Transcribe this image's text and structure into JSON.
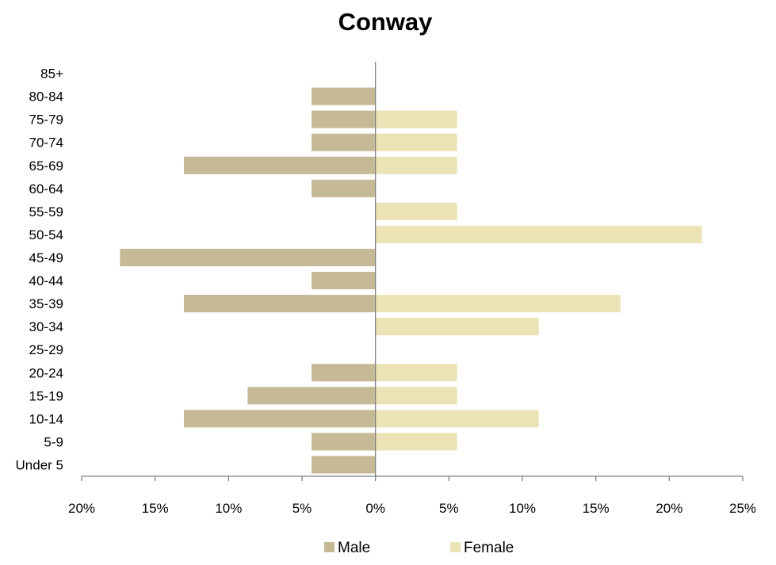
{
  "chart_data": {
    "type": "bar",
    "orientation": "horizontal",
    "title": "Conway",
    "categories": [
      "Under 5",
      "5-9",
      "10-14",
      "15-19",
      "20-24",
      "25-29",
      "30-34",
      "35-39",
      "40-44",
      "45-49",
      "50-54",
      "55-59",
      "60-64",
      "65-69",
      "70-74",
      "75-79",
      "80-84",
      "85+"
    ],
    "series": [
      {
        "name": "Male",
        "color": "#c5b996",
        "values": [
          4.35,
          4.35,
          13.04,
          8.7,
          4.35,
          0,
          0,
          13.04,
          4.35,
          17.39,
          0,
          0,
          4.35,
          13.04,
          4.35,
          4.35,
          4.35,
          0
        ]
      },
      {
        "name": "Female",
        "color": "#ebe3b5",
        "values": [
          0,
          5.56,
          11.11,
          5.56,
          5.56,
          0,
          11.11,
          16.67,
          0,
          0,
          22.22,
          5.56,
          0,
          5.56,
          5.56,
          5.56,
          0,
          0
        ]
      }
    ],
    "xlim": [
      -20,
      25
    ],
    "xticks": [
      -20,
      -15,
      -10,
      -5,
      0,
      5,
      10,
      15,
      20,
      25
    ],
    "xtick_labels": [
      "20%",
      "15%",
      "10%",
      "5%",
      "0%",
      "5%",
      "10%",
      "15%",
      "20%",
      "25%"
    ],
    "xlabel": "",
    "ylabel": "",
    "grid": false,
    "legend_position": "bottom"
  }
}
